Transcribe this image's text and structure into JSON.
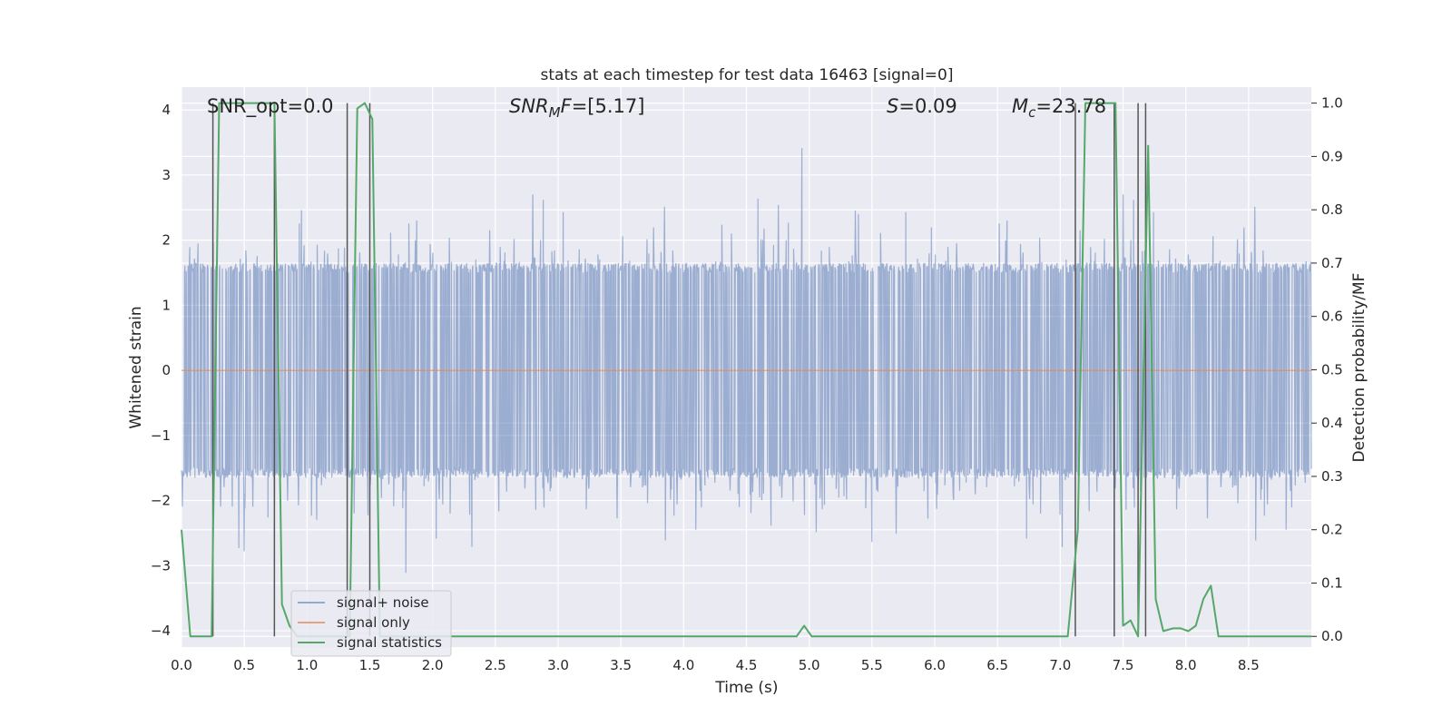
{
  "chart_data": {
    "type": "line",
    "title": "stats at each timestep for test data 16463 [signal=0]",
    "xlabel": "Time (s)",
    "ylabel_left": "Whitened strain",
    "ylabel_right": "Detection probability/MF",
    "xlim": [
      0.0,
      9.0
    ],
    "ylim_left": [
      -4.25,
      4.35
    ],
    "ylim_right": [
      -0.02,
      1.03
    ],
    "xticks": [
      "0.0",
      "0.5",
      "1.0",
      "1.5",
      "2.0",
      "2.5",
      "3.0",
      "3.5",
      "4.0",
      "4.5",
      "5.0",
      "5.5",
      "6.0",
      "6.5",
      "7.0",
      "7.5",
      "8.0",
      "8.5"
    ],
    "yticks_left": [
      "−4",
      "−3",
      "−2",
      "−1",
      "0",
      "1",
      "2",
      "3",
      "4"
    ],
    "yticks_right": [
      "0.0",
      "0.1",
      "0.2",
      "0.3",
      "0.4",
      "0.5",
      "0.6",
      "0.7",
      "0.8",
      "0.9",
      "1.0"
    ],
    "annotations": {
      "snr_opt": "SNR_opt=0.0",
      "snr_mf_prefix": "SNR",
      "snr_mf_sub": "M",
      "snr_mf_suffix": "F",
      "snr_mf_value": "=[5.17]",
      "s_symbol": "S",
      "s_value": "=0.09",
      "mc_symbol": "M",
      "mc_sub": "c",
      "mc_value": "=23.78"
    },
    "legend": {
      "position": "lower left",
      "items": [
        {
          "label": "signal+ noise",
          "color": "#4c72b0"
        },
        {
          "label": "signal only",
          "color": "#dd8452"
        },
        {
          "label": "signal statistics",
          "color": "#55a868"
        }
      ]
    },
    "grid": true,
    "series": [
      {
        "name": "signal+ noise",
        "axis": "left",
        "style": "dense noise trace, amplitude ~1.6 with spikes to ~3.8",
        "color": "#4c72b0"
      },
      {
        "name": "signal only",
        "axis": "left",
        "x": [
          0.0,
          9.0
        ],
        "y": [
          0.0,
          0.0
        ],
        "color": "#dd8452"
      },
      {
        "name": "signal statistics",
        "axis": "right",
        "color": "#55a868",
        "x": [
          0.0,
          0.07,
          0.24,
          0.3,
          0.74,
          0.8,
          0.86,
          0.92,
          1.28,
          1.34,
          1.4,
          1.46,
          1.52,
          1.58,
          1.64,
          4.9,
          4.96,
          5.02,
          6.9,
          7.06,
          7.14,
          7.2,
          7.44,
          7.5,
          7.56,
          7.62,
          7.7,
          7.76,
          7.82,
          7.9,
          7.96,
          8.02,
          8.08,
          8.14,
          8.2,
          8.26,
          8.32,
          9.0
        ],
        "y": [
          0.2,
          0.0,
          0.0,
          1.0,
          1.0,
          0.06,
          0.02,
          0.0,
          0.0,
          0.0,
          0.99,
          1.0,
          0.97,
          0.0,
          0.0,
          0.0,
          0.02,
          0.0,
          0.0,
          0.0,
          0.2,
          1.0,
          1.0,
          0.02,
          0.03,
          0.0,
          0.92,
          0.07,
          0.01,
          0.015,
          0.015,
          0.01,
          0.02,
          0.07,
          0.095,
          0.0,
          0.0,
          0.0
        ]
      }
    ],
    "vertical_markers": [
      0.25,
      0.74,
      1.32,
      1.5,
      7.12,
      7.43,
      7.62,
      7.68
    ],
    "colors": {
      "axes_background": "#eaeaf2",
      "grid": "#ffffff",
      "noise": "#4c72b0",
      "signal_only": "#dd8452",
      "statistics": "#55a868",
      "markers": "#555555"
    }
  }
}
